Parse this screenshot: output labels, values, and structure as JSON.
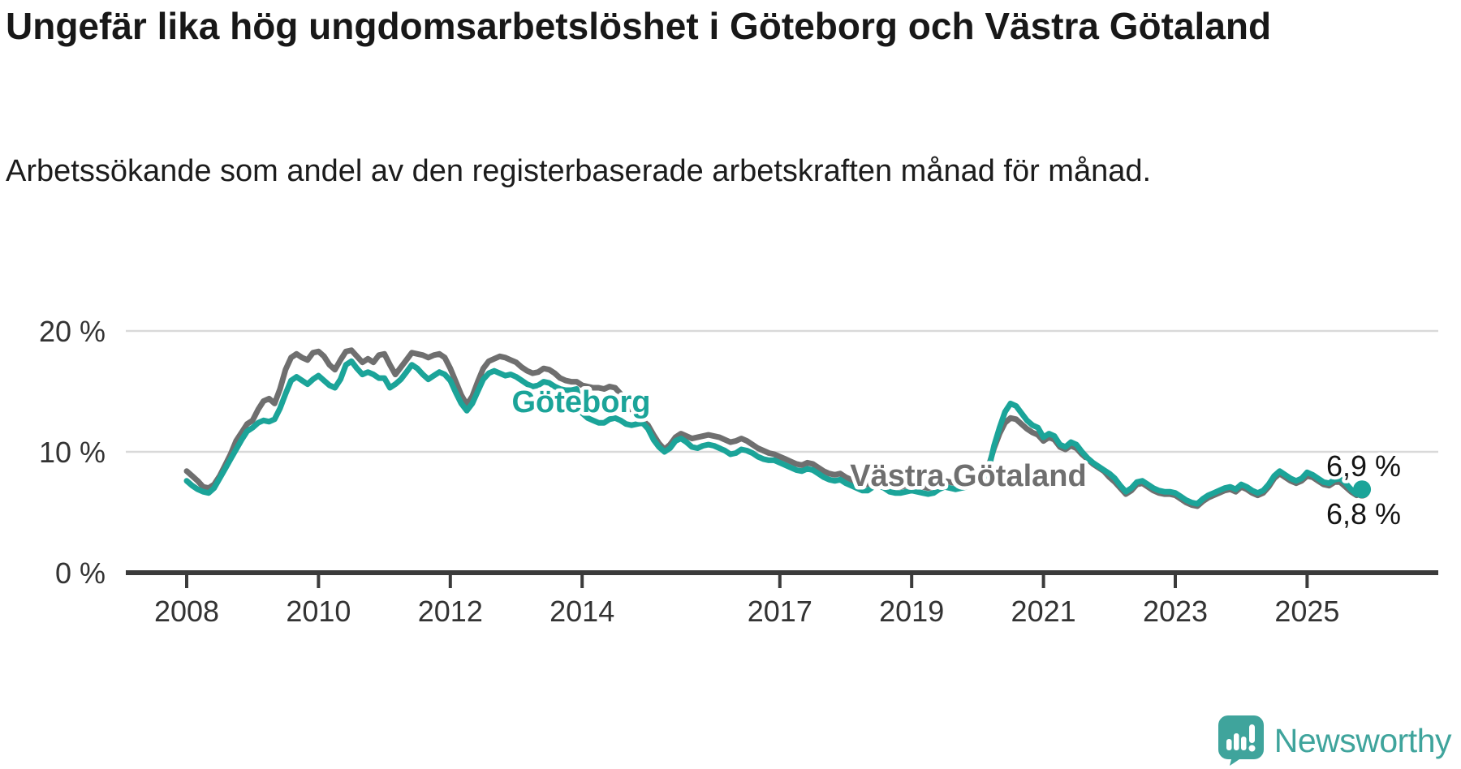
{
  "title": "Ungefär lika hög ungdomsarbetslöshet i Göteborg och Västra Götaland",
  "subtitle": "Arbetssökande som andel av den registerbaserade arbetskraften månad för månad.",
  "y_axis": {
    "ticks": [
      {
        "label": "20 %",
        "value": 20
      },
      {
        "label": "10 %",
        "value": 10
      },
      {
        "label": "0 %",
        "value": 0
      }
    ]
  },
  "x_axis": {
    "ticks": [
      {
        "label": "2008",
        "year": 2008
      },
      {
        "label": "2010",
        "year": 2010
      },
      {
        "label": "2012",
        "year": 2012
      },
      {
        "label": "2014",
        "year": 2014
      },
      {
        "label": "2017",
        "year": 2017
      },
      {
        "label": "2019",
        "year": 2019
      },
      {
        "label": "2021",
        "year": 2021
      },
      {
        "label": "2023",
        "year": 2023
      },
      {
        "label": "2025",
        "year": 2025
      }
    ]
  },
  "series_labels": {
    "goteborg": "Göteborg",
    "vastra_gotaland": "Västra Götaland"
  },
  "end_labels": {
    "goteborg": "6,9 %",
    "vastra_gotaland": "6,8 %"
  },
  "colors": {
    "goteborg": "#1ba499",
    "vastra_gotaland": "#6f6f6f",
    "gridline": "#d9d9d9",
    "axis": "#3b3b3b",
    "axis_text": "#333333",
    "logo_teal": "#3fa49c"
  },
  "logo": {
    "text": "Newsworthy",
    "icon": "newsworthy-speech-bubble-bar-chart-icon"
  },
  "chart_data": {
    "type": "line",
    "unit": "%",
    "frequency": "monthly",
    "start": "2008-01",
    "end": "2025-11",
    "ylim": [
      0,
      22
    ],
    "grid": "horizontal",
    "legend": "inline-labels",
    "series": [
      {
        "name": "Göteborg",
        "color": "#1ba499",
        "end_value_label": "6,9 %",
        "values": [
          7.6,
          7.2,
          6.9,
          6.7,
          6.6,
          7.0,
          7.8,
          8.6,
          9.4,
          10.2,
          11.0,
          11.7,
          12.0,
          12.4,
          12.6,
          12.5,
          12.7,
          13.6,
          14.8,
          15.9,
          16.2,
          15.9,
          15.6,
          16.0,
          16.3,
          15.9,
          15.5,
          15.3,
          16.0,
          17.2,
          17.5,
          16.9,
          16.4,
          16.6,
          16.4,
          16.1,
          16.1,
          15.3,
          15.6,
          16.0,
          16.6,
          17.2,
          16.9,
          16.4,
          16.0,
          16.3,
          16.6,
          16.4,
          15.9,
          14.9,
          14.0,
          13.4,
          14.0,
          15.0,
          16.0,
          16.5,
          16.7,
          16.5,
          16.3,
          16.4,
          16.2,
          15.9,
          15.6,
          15.4,
          15.5,
          15.8,
          15.7,
          15.4,
          15.2,
          15.1,
          15.1,
          15.2,
          13.2,
          12.8,
          12.6,
          12.4,
          12.4,
          12.7,
          12.8,
          12.6,
          12.3,
          12.2,
          12.3,
          12.4,
          11.9,
          11.0,
          10.4,
          10.0,
          10.3,
          10.9,
          11.1,
          10.8,
          10.4,
          10.3,
          10.5,
          10.6,
          10.5,
          10.3,
          10.1,
          9.8,
          9.9,
          10.2,
          10.1,
          9.9,
          9.6,
          9.4,
          9.3,
          9.3,
          9.1,
          8.9,
          8.7,
          8.5,
          8.4,
          8.6,
          8.5,
          8.2,
          7.9,
          7.7,
          7.6,
          7.7,
          7.4,
          7.2,
          7.0,
          6.8,
          6.8,
          7.1,
          7.2,
          7.0,
          6.7,
          6.6,
          6.6,
          6.7,
          6.8,
          6.7,
          6.6,
          6.5,
          6.6,
          6.9,
          7.1,
          7.0,
          6.9,
          7.0,
          7.1,
          7.3,
          7.5,
          7.6,
          8.5,
          10.5,
          12.0,
          13.3,
          14.0,
          13.8,
          13.2,
          12.6,
          12.2,
          12.0,
          11.2,
          11.5,
          11.3,
          10.6,
          10.4,
          10.8,
          10.6,
          10.0,
          9.5,
          9.1,
          8.8,
          8.5,
          8.2,
          7.8,
          7.2,
          6.7,
          7.0,
          7.5,
          7.6,
          7.3,
          7.0,
          6.8,
          6.7,
          6.7,
          6.6,
          6.3,
          6.0,
          5.8,
          5.7,
          6.1,
          6.4,
          6.6,
          6.8,
          7.0,
          7.1,
          6.9,
          7.3,
          7.1,
          6.8,
          6.6,
          6.8,
          7.3,
          8.0,
          8.4,
          8.1,
          7.8,
          7.6,
          7.8,
          8.3,
          8.1,
          7.8,
          7.5,
          7.4,
          7.7,
          7.8,
          7.4,
          6.9,
          6.5,
          6.9
        ]
      },
      {
        "name": "Västra Götaland",
        "color": "#6f6f6f",
        "end_value_label": "6,8 %",
        "values": [
          8.4,
          8.0,
          7.6,
          7.1,
          7.0,
          7.3,
          8.0,
          8.9,
          9.8,
          10.9,
          11.6,
          12.3,
          12.6,
          13.5,
          14.2,
          14.4,
          14.0,
          15.2,
          16.8,
          17.8,
          18.1,
          17.8,
          17.6,
          18.2,
          18.3,
          17.9,
          17.2,
          16.8,
          17.6,
          18.3,
          18.4,
          17.9,
          17.4,
          17.7,
          17.4,
          18.0,
          18.1,
          17.2,
          16.4,
          17.0,
          17.6,
          18.2,
          18.1,
          18.0,
          17.8,
          18.0,
          18.1,
          17.8,
          16.9,
          15.8,
          14.7,
          13.9,
          14.6,
          15.8,
          16.9,
          17.5,
          17.7,
          17.9,
          17.8,
          17.6,
          17.4,
          17.0,
          16.7,
          16.5,
          16.6,
          16.9,
          16.8,
          16.5,
          16.1,
          15.9,
          15.8,
          15.8,
          15.5,
          15.4,
          15.3,
          15.3,
          15.2,
          15.4,
          15.3,
          14.8,
          14.1,
          13.5,
          13.0,
          12.6,
          12.2,
          11.4,
          10.7,
          10.2,
          10.6,
          11.2,
          11.5,
          11.3,
          11.1,
          11.2,
          11.3,
          11.4,
          11.3,
          11.2,
          11.0,
          10.8,
          10.9,
          11.1,
          10.9,
          10.6,
          10.3,
          10.1,
          9.9,
          9.8,
          9.6,
          9.4,
          9.2,
          9.0,
          8.9,
          9.1,
          9.0,
          8.7,
          8.4,
          8.2,
          8.1,
          8.2,
          7.9,
          7.7,
          7.5,
          7.3,
          7.3,
          7.6,
          7.7,
          7.5,
          7.2,
          7.1,
          7.1,
          7.2,
          7.3,
          7.2,
          7.1,
          7.0,
          7.1,
          7.4,
          7.6,
          7.5,
          7.4,
          7.5,
          7.6,
          7.7,
          7.9,
          8.0,
          8.8,
          10.3,
          11.5,
          12.4,
          12.8,
          12.7,
          12.3,
          11.9,
          11.6,
          11.4,
          10.9,
          11.2,
          11.0,
          10.4,
          10.2,
          10.5,
          10.3,
          9.8,
          9.4,
          9.0,
          8.7,
          8.4,
          7.9,
          7.5,
          7.0,
          6.5,
          6.8,
          7.3,
          7.4,
          7.1,
          6.8,
          6.6,
          6.5,
          6.5,
          6.4,
          6.1,
          5.8,
          5.6,
          5.5,
          5.9,
          6.2,
          6.4,
          6.6,
          6.8,
          6.9,
          6.7,
          7.1,
          6.9,
          6.6,
          6.4,
          6.6,
          7.1,
          7.8,
          8.2,
          7.9,
          7.6,
          7.4,
          7.6,
          8.0,
          7.9,
          7.6,
          7.3,
          7.2,
          7.5,
          7.5,
          7.1,
          6.7,
          6.4,
          6.8
        ]
      }
    ]
  }
}
